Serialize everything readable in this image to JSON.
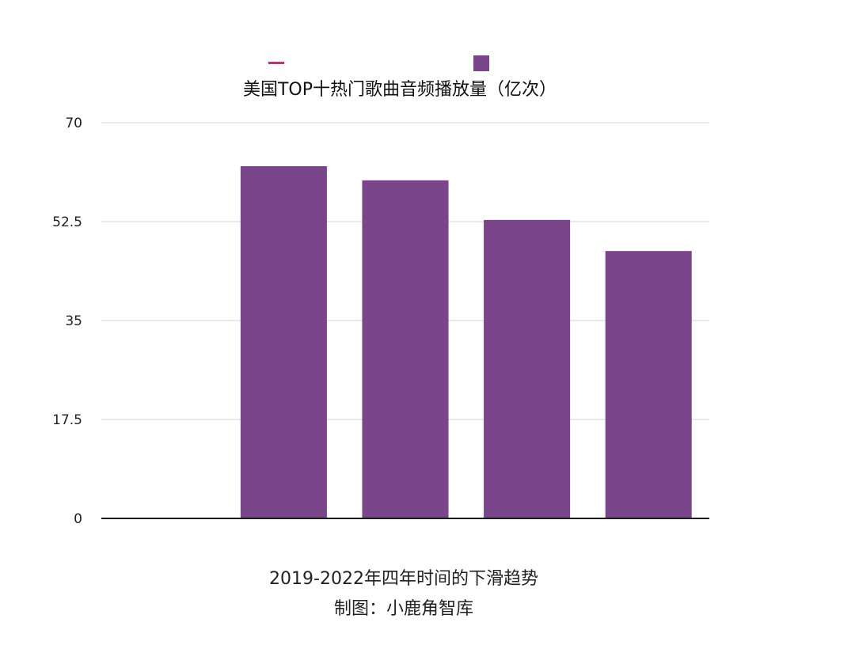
{
  "colors": {
    "bar": "#7b458c",
    "legend_line": "#c2306f",
    "gridline": "#d3d3d3",
    "axis": "#1a1a1a",
    "tick_text": "#222222"
  },
  "legend": {
    "items": [
      {
        "marker": "line",
        "label": ""
      },
      {
        "marker": "square",
        "label": ""
      }
    ]
  },
  "captions": {
    "line1": "2019-2022年四年时间的下滑趋势",
    "line2": "制图：小鹿角智库"
  },
  "chart_data": {
    "type": "bar",
    "title": "美国TOP十热门歌曲音频播放量（亿次）",
    "categories": [
      "",
      "",
      "",
      "",
      ""
    ],
    "series": [
      {
        "values": [
          null,
          62.3,
          59.8,
          52.8,
          47.3
        ]
      }
    ],
    "xlabel": "",
    "ylabel": "",
    "ylim": [
      0,
      70
    ],
    "yticks": [
      0,
      17.5,
      35,
      52.5,
      70
    ],
    "ytick_labels": [
      "0",
      "17.5",
      "35",
      "52.5",
      "70"
    ],
    "grid": true,
    "legend_position": "top"
  }
}
